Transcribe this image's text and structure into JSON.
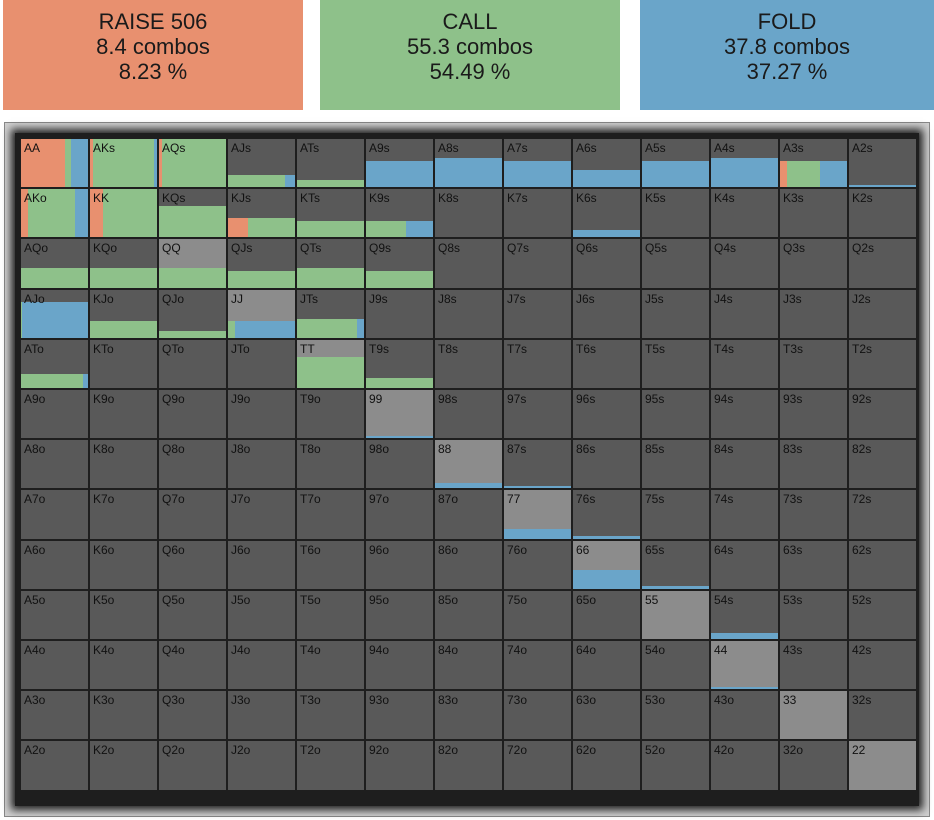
{
  "actions": [
    {
      "id": "raise",
      "label": "RAISE 506",
      "combos": "8.4 combos",
      "percent": "8.23 %",
      "color": "#e8906f"
    },
    {
      "id": "call",
      "label": "CALL",
      "combos": "55.3 combos",
      "percent": "54.49 %",
      "color": "#8ec18a"
    },
    {
      "id": "fold",
      "label": "FOLD",
      "combos": "37.8 combos",
      "percent": "37.27 %",
      "color": "#6aa5c9"
    }
  ],
  "colors": {
    "raise": "#e8906f",
    "call": "#8ec18a",
    "fold": "#6aa5c9",
    "empty": "#595959",
    "pair": "#8c8c8c"
  },
  "ranks": [
    "A",
    "K",
    "Q",
    "J",
    "T",
    "9",
    "8",
    "7",
    "6",
    "5",
    "4",
    "3",
    "2"
  ],
  "hands": [
    [
      "AA",
      "AKs",
      "AQs",
      "AJs",
      "ATs",
      "A9s",
      "A8s",
      "A7s",
      "A6s",
      "A5s",
      "A4s",
      "A3s",
      "A2s"
    ],
    [
      "AKo",
      "KK",
      "KQs",
      "KJs",
      "KTs",
      "K9s",
      "K8s",
      "K7s",
      "K6s",
      "K5s",
      "K4s",
      "K3s",
      "K2s"
    ],
    [
      "AQo",
      "KQo",
      "QQ",
      "QJs",
      "QTs",
      "Q9s",
      "Q8s",
      "Q7s",
      "Q6s",
      "Q5s",
      "Q4s",
      "Q3s",
      "Q2s"
    ],
    [
      "AJo",
      "KJo",
      "QJo",
      "JJ",
      "JTs",
      "J9s",
      "J8s",
      "J7s",
      "J6s",
      "J5s",
      "J4s",
      "J3s",
      "J2s"
    ],
    [
      "ATo",
      "KTo",
      "QTo",
      "JTo",
      "TT",
      "T9s",
      "T8s",
      "T7s",
      "T6s",
      "T5s",
      "T4s",
      "T3s",
      "T2s"
    ],
    [
      "A9o",
      "K9o",
      "Q9o",
      "J9o",
      "T9o",
      "99",
      "98s",
      "97s",
      "96s",
      "95s",
      "94s",
      "93s",
      "92s"
    ],
    [
      "A8o",
      "K8o",
      "Q8o",
      "J8o",
      "T8o",
      "98o",
      "88",
      "87s",
      "86s",
      "85s",
      "84s",
      "83s",
      "82s"
    ],
    [
      "A7o",
      "K7o",
      "Q7o",
      "J7o",
      "T7o",
      "97o",
      "87o",
      "77",
      "76s",
      "75s",
      "74s",
      "73s",
      "72s"
    ],
    [
      "A6o",
      "K6o",
      "Q6o",
      "J6o",
      "T6o",
      "96o",
      "86o",
      "76o",
      "66",
      "65s",
      "64s",
      "63s",
      "62s"
    ],
    [
      "A5o",
      "K5o",
      "Q5o",
      "J5o",
      "T5o",
      "95o",
      "85o",
      "75o",
      "65o",
      "55",
      "54s",
      "53s",
      "52s"
    ],
    [
      "A4o",
      "K4o",
      "Q4o",
      "J4o",
      "T4o",
      "94o",
      "84o",
      "74o",
      "64o",
      "54o",
      "44",
      "43s",
      "42s"
    ],
    [
      "A3o",
      "K3o",
      "Q3o",
      "J3o",
      "T3o",
      "93o",
      "83o",
      "73o",
      "63o",
      "53o",
      "43o",
      "33",
      "32s"
    ],
    [
      "A2o",
      "K2o",
      "Q2o",
      "J2o",
      "T2o",
      "92o",
      "82o",
      "72o",
      "62o",
      "52o",
      "42o",
      "32o",
      "22"
    ]
  ],
  "strategy": {
    "AA": {
      "freq": 1,
      "raise": 0.65,
      "call": 0.1,
      "fold": 0.25
    },
    "AKs": {
      "freq": 1,
      "raise": 0.05,
      "call": 0.9,
      "fold": 0.05
    },
    "AQs": {
      "freq": 1,
      "raise": 0.05,
      "call": 0.95,
      "fold": 0
    },
    "AJs": {
      "freq": 0.25,
      "raise": 0,
      "call": 0.85,
      "fold": 0.15
    },
    "ATs": {
      "freq": 0.15,
      "raise": 0,
      "call": 1,
      "fold": 0
    },
    "A9s": {
      "freq": 0.55,
      "raise": 0,
      "call": 0,
      "fold": 1
    },
    "A8s": {
      "freq": 0.6,
      "raise": 0,
      "call": 0,
      "fold": 1
    },
    "A7s": {
      "freq": 0.55,
      "raise": 0,
      "call": 0,
      "fold": 1
    },
    "A6s": {
      "freq": 0.35,
      "raise": 0,
      "call": 0,
      "fold": 1
    },
    "A5s": {
      "freq": 0.55,
      "raise": 0,
      "call": 0,
      "fold": 1
    },
    "A4s": {
      "freq": 0.6,
      "raise": 0,
      "call": 0,
      "fold": 1
    },
    "A3s": {
      "freq": 0.55,
      "raise": 0.1,
      "call": 0.5,
      "fold": 0.4
    },
    "A2s": {
      "freq": 0.04,
      "raise": 0,
      "call": 0,
      "fold": 1
    },
    "AKo": {
      "freq": 1,
      "raise": 0.1,
      "call": 0.7,
      "fold": 0.2
    },
    "KK": {
      "freq": 1,
      "raise": 0.2,
      "call": 0.8,
      "fold": 0
    },
    "KQs": {
      "freq": 0.65,
      "raise": 0,
      "call": 1,
      "fold": 0
    },
    "KJs": {
      "freq": 0.4,
      "raise": 0.3,
      "call": 0.7,
      "fold": 0
    },
    "KTs": {
      "freq": 0.35,
      "raise": 0,
      "call": 1,
      "fold": 0
    },
    "K9s": {
      "freq": 0.35,
      "raise": 0,
      "call": 0.6,
      "fold": 0.4
    },
    "K6s": {
      "freq": 0.15,
      "raise": 0,
      "call": 0,
      "fold": 1
    },
    "AQo": {
      "freq": 0.4,
      "raise": 0,
      "call": 1,
      "fold": 0
    },
    "KQo": {
      "freq": 0.4,
      "raise": 0,
      "call": 1,
      "fold": 0
    },
    "QQ": {
      "freq": 0.4,
      "raise": 0,
      "call": 1,
      "fold": 0
    },
    "QJs": {
      "freq": 0.35,
      "raise": 0,
      "call": 1,
      "fold": 0
    },
    "QTs": {
      "freq": 0.4,
      "raise": 0,
      "call": 1,
      "fold": 0
    },
    "Q9s": {
      "freq": 0.35,
      "raise": 0,
      "call": 1,
      "fold": 0
    },
    "AJo": {
      "freq": 0.75,
      "raise": 0,
      "call": 0.02,
      "fold": 0.98
    },
    "KJo": {
      "freq": 0.35,
      "raise": 0,
      "call": 1,
      "fold": 0
    },
    "QJo": {
      "freq": 0.15,
      "raise": 0,
      "call": 1,
      "fold": 0
    },
    "JJ": {
      "freq": 0.35,
      "raise": 0,
      "call": 0.1,
      "fold": 0.9
    },
    "JTs": {
      "freq": 0.4,
      "raise": 0,
      "call": 0.9,
      "fold": 0.1
    },
    "ATo": {
      "freq": 0.3,
      "raise": 0,
      "call": 0.92,
      "fold": 0.08
    },
    "TT": {
      "freq": 0.65,
      "raise": 0,
      "call": 1,
      "fold": 0
    },
    "T9s": {
      "freq": 0.2,
      "raise": 0,
      "call": 1,
      "fold": 0
    },
    "99": {
      "freq": 0.04,
      "raise": 0,
      "call": 0,
      "fold": 1
    },
    "88": {
      "freq": 0.12,
      "raise": 0,
      "call": 0,
      "fold": 1
    },
    "87s": {
      "freq": 0.05,
      "raise": 0,
      "call": 0,
      "fold": 1
    },
    "77": {
      "freq": 0.2,
      "raise": 0,
      "call": 0,
      "fold": 1
    },
    "76s": {
      "freq": 0.05,
      "raise": 0,
      "call": 0,
      "fold": 1
    },
    "66": {
      "freq": 0.4,
      "raise": 0,
      "call": 0,
      "fold": 1
    },
    "65s": {
      "freq": 0.05,
      "raise": 0,
      "call": 0,
      "fold": 1
    },
    "54s": {
      "freq": 0.12,
      "raise": 0,
      "call": 0,
      "fold": 1
    },
    "44": {
      "freq": 0.04,
      "raise": 0,
      "call": 0,
      "fold": 1
    }
  }
}
